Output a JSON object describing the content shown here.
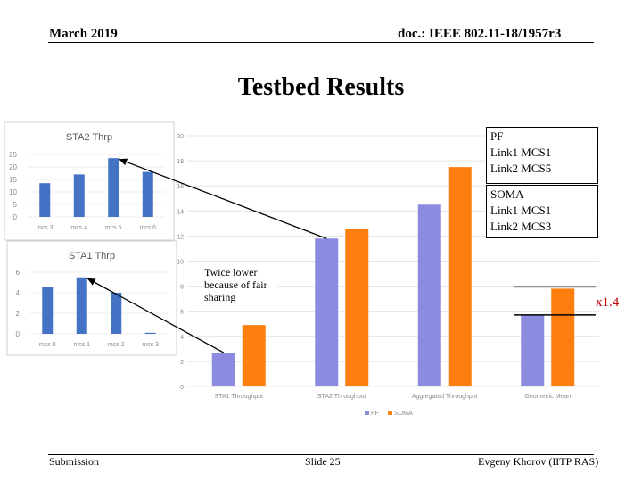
{
  "slide": {
    "header_left": "March 2019",
    "header_right": "doc.: IEEE 802.11-18/1957r3",
    "title": "Testbed Results",
    "footer_left": "Submission",
    "footer_center": "Slide 25",
    "footer_right": "Evgeny Khorov (IITP RAS)"
  },
  "annotations": {
    "pf_box": [
      "PF",
      "Link1 MCS1",
      "Link2 MCS5"
    ],
    "soma_box": [
      "SOMA",
      "Link1 MCS1",
      "Link2 MCS3"
    ],
    "twice_lower": "Twice lower because of fair sharing",
    "ratio_label": "x1.4"
  },
  "colors": {
    "pf": "#8B8BE0",
    "soma": "#FF7F0E",
    "thumb_bar": "#4472C4",
    "ratio": "#C00000"
  },
  "chart_data": [
    {
      "id": "main",
      "type": "bar",
      "title": "",
      "categories": [
        "STA1 Throughput",
        "STA2 Throughput",
        "Aggregated Throughput",
        "Geometric Mean"
      ],
      "series": [
        {
          "name": "PF",
          "values": [
            2.7,
            11.8,
            14.5,
            5.7
          ]
        },
        {
          "name": "SOMA",
          "values": [
            4.9,
            12.6,
            17.5,
            7.8
          ]
        }
      ],
      "ylim": [
        0,
        20
      ],
      "yticks": [
        "0",
        "2",
        "4",
        "6",
        "8",
        "10",
        "12",
        "14",
        "16",
        "18",
        "20"
      ],
      "legend": "bottom",
      "grid": true
    },
    {
      "id": "sta2",
      "type": "bar",
      "title": "STA2 Thrp",
      "categories": [
        "mcs 3",
        "mcs 4",
        "mcs 5",
        "mcs 6"
      ],
      "values": [
        13.5,
        17,
        23.5,
        18
      ],
      "ylim": [
        0,
        25
      ],
      "yticks": [
        "0",
        "5",
        "10",
        "15",
        "20",
        "25"
      ]
    },
    {
      "id": "sta1",
      "type": "bar",
      "title": "STA1 Thrp",
      "categories": [
        "mcs 0",
        "mcs 1",
        "mcs 2",
        "mcs 3"
      ],
      "values": [
        4.6,
        5.5,
        4.0,
        0.1
      ],
      "ylim": [
        0,
        6
      ],
      "yticks": [
        "0",
        "2",
        "4",
        "6"
      ]
    }
  ]
}
